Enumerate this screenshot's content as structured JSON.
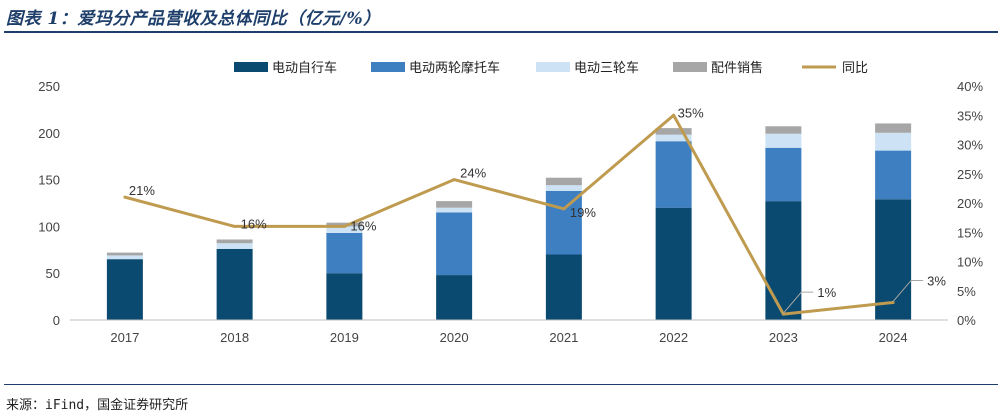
{
  "title": "图表 1：爱玛分产品营收及总体同比（亿元/%）",
  "source": "来源：iFind，国金证券研究所",
  "chart_data": {
    "type": "bar",
    "stacked": true,
    "categories": [
      "2017",
      "2018",
      "2019",
      "2020",
      "2021",
      "2022",
      "2023",
      "2024"
    ],
    "series": [
      {
        "name": "电动自行车",
        "color": "#0b4a70",
        "values": [
          65,
          76,
          50,
          48,
          70,
          120,
          127,
          129
        ]
      },
      {
        "name": "电动两轮摩托车",
        "color": "#3d7fc1",
        "values": [
          0,
          0,
          43,
          67,
          68,
          71,
          57,
          52
        ]
      },
      {
        "name": "电动三轮车",
        "color": "#cde3f5",
        "values": [
          4,
          6,
          7,
          5,
          6,
          7,
          15,
          19
        ]
      },
      {
        "name": "配件销售",
        "color": "#a6a6a6",
        "values": [
          3,
          4,
          4,
          7,
          8,
          7,
          8,
          10
        ]
      }
    ],
    "line": {
      "name": "同比",
      "color": "#bf9b50",
      "values": [
        21,
        16,
        16,
        24,
        19,
        35,
        1,
        3
      ],
      "labels": [
        "21%",
        "16%",
        "16%",
        "24%",
        "19%",
        "35%",
        "1%",
        "3%"
      ]
    },
    "y_left": {
      "ylim": [
        0,
        250
      ],
      "ticks": [
        "0",
        "50",
        "100",
        "150",
        "200",
        "250"
      ]
    },
    "y_right": {
      "ylim": [
        0,
        40
      ],
      "ticks": [
        "0%",
        "5%",
        "10%",
        "15%",
        "20%",
        "25%",
        "30%",
        "35%",
        "40%"
      ]
    },
    "legend_position": "top"
  }
}
